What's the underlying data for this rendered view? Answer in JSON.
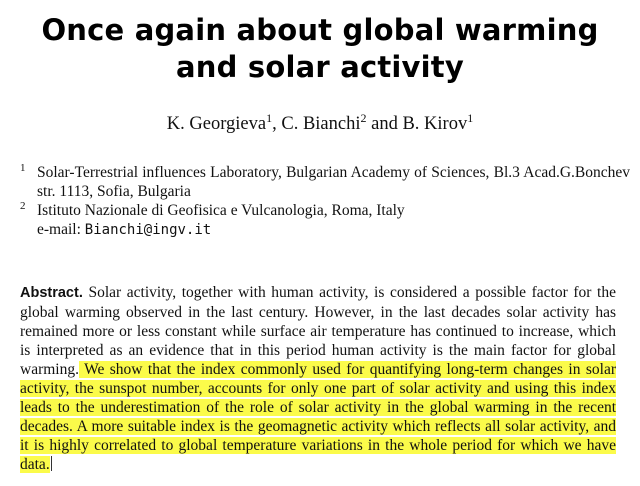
{
  "paper": {
    "title_line1": "Once again about global warming",
    "title_line2": "and solar activity",
    "authors": [
      {
        "name": "K. Georgieva",
        "sup": "1"
      },
      {
        "name": "C. Bianchi",
        "sup": "2"
      },
      {
        "name": "B. Kirov",
        "sup": "1"
      }
    ],
    "author_sep_1": ", ",
    "author_sep_2": " and ",
    "affiliations": [
      {
        "num": "1",
        "text": "Solar-Terrestrial influences Laboratory, Bulgarian Academy of Sciences, Bl.3 Acad.G.Bonchev str. 1113, Sofia, Bulgaria"
      },
      {
        "num": "2",
        "text": "Istituto Nazionale di Geofisica e Vulcanologia, Roma, Italy"
      }
    ],
    "email_label": "e-mail: ",
    "email": "Bianchi@ingv.it",
    "abstract_label": "Abstract.",
    "abstract_plain": " Solar activity, together with human activity, is considered a possible factor for the global warming observed in the last century. However, in the last decades solar activity has remained more or less constant while surface air temperature has continued to increase, which is interpreted as an evidence that in this period human activity is the main factor for global warming.",
    "abstract_highlighted": " We show that the index commonly used for quantifying long-term changes in solar activity, the sunspot number, accounts for only one part of solar activity and using this index leads to the underestimation of the role of solar activity in the global warming in the recent decades. A more suitable index is the geomagnetic activity which reflects all solar activity, and it is highly correlated to global temperature variations in the whole period for which we have data.",
    "highlight_color": "#fbfb4a"
  }
}
